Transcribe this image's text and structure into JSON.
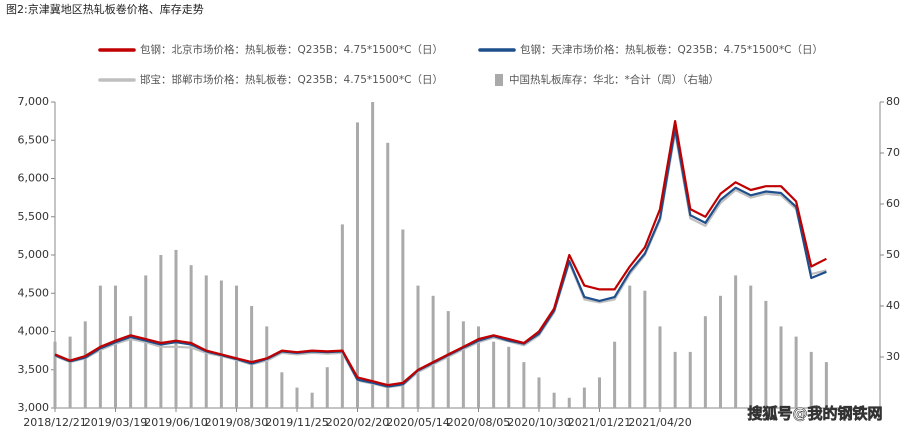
{
  "chart_data": {
    "type": "line-bar",
    "title": "图2:京津冀地区热轧板卷价格、库存走势",
    "watermark": "搜狐号@我的钢铁网",
    "categories": [
      "2018/12/21",
      null,
      null,
      null,
      "2019/03/19",
      null,
      null,
      null,
      "2019/06/10",
      null,
      null,
      null,
      "2019/08/30",
      null,
      null,
      null,
      "2019/11/25",
      null,
      null,
      null,
      "2020/02/20",
      null,
      null,
      null,
      "2020/05/14",
      null,
      null,
      null,
      "2020/08/05",
      null,
      null,
      null,
      "2020/10/30",
      null,
      null,
      null,
      "2021/01/21",
      null,
      null,
      null,
      "2021/04/20",
      null,
      null,
      null,
      null,
      null,
      null,
      null,
      null,
      null,
      null,
      null
    ],
    "ylim": [
      3000,
      7000
    ],
    "yticks": [
      {
        "value": 3000,
        "label": "3,000"
      },
      {
        "value": 3500,
        "label": "3,500"
      },
      {
        "value": 4000,
        "label": "4,000"
      },
      {
        "value": 4500,
        "label": "4,500"
      },
      {
        "value": 5000,
        "label": "5,000"
      },
      {
        "value": 5500,
        "label": "5,500"
      },
      {
        "value": 6000,
        "label": "6,000"
      },
      {
        "value": 6500,
        "label": "6,500"
      },
      {
        "value": 7000,
        "label": "7,000"
      }
    ],
    "y2lim": [
      20,
      80
    ],
    "y2ticks": [
      30,
      40,
      50,
      60,
      70,
      80
    ],
    "series": [
      {
        "name": "中国热轧板库存：华北：*合计（周）（右轴）",
        "color": "#aaaaaa",
        "axis": "y2",
        "kind": "bar",
        "values": [
          33,
          34,
          37,
          44,
          44,
          38,
          46,
          50,
          51,
          48,
          46,
          45,
          44,
          40,
          36,
          27,
          24,
          23,
          28,
          56,
          76,
          80,
          72,
          55,
          44,
          42,
          39,
          37,
          36,
          33,
          32,
          29,
          26,
          23,
          22,
          24,
          26,
          33,
          44,
          43,
          36,
          31,
          31,
          38,
          42,
          46,
          44,
          41,
          36,
          34,
          31,
          29
        ]
      },
      {
        "name": "邯宝：邯郸市场价格：热轧板卷：Q235B：4.75*1500*C（日）",
        "color": "#bfbfbf",
        "kind": "line",
        "values": [
          3680,
          3600,
          3650,
          3760,
          3840,
          3900,
          3860,
          3800,
          3800,
          3790,
          3720,
          3680,
          3630,
          3570,
          3620,
          3720,
          3700,
          3720,
          3710,
          3720,
          3360,
          3320,
          3270,
          3300,
          3470,
          3570,
          3670,
          3770,
          3860,
          3920,
          3870,
          3820,
          3950,
          4250,
          4900,
          4420,
          4380,
          4420,
          4750,
          5000,
          5450,
          6600,
          5480,
          5380,
          5680,
          5850,
          5750,
          5800,
          5780,
          5600,
          4750,
          4800
        ]
      },
      {
        "name": "包钢：天津市场价格：热轧板卷：Q235B：4.75*1500*C（日）",
        "color": "#1f4e8c",
        "kind": "line",
        "values": [
          3690,
          3610,
          3660,
          3780,
          3860,
          3930,
          3880,
          3830,
          3860,
          3830,
          3740,
          3690,
          3640,
          3580,
          3640,
          3740,
          3720,
          3740,
          3730,
          3740,
          3370,
          3330,
          3280,
          3310,
          3490,
          3590,
          3690,
          3790,
          3880,
          3940,
          3880,
          3840,
          3970,
          4270,
          4920,
          4450,
          4400,
          4450,
          4780,
          5020,
          5480,
          6650,
          5520,
          5420,
          5720,
          5880,
          5780,
          5830,
          5810,
          5630,
          4700,
          4780
        ]
      },
      {
        "name": "包钢：北京市场价格：热轧板卷：Q235B：4.75*1500*C（日）",
        "color": "#c00000",
        "kind": "line",
        "values": [
          3700,
          3620,
          3680,
          3800,
          3880,
          3950,
          3900,
          3850,
          3880,
          3850,
          3750,
          3700,
          3650,
          3600,
          3650,
          3750,
          3730,
          3750,
          3740,
          3750,
          3400,
          3350,
          3300,
          3330,
          3500,
          3600,
          3700,
          3800,
          3900,
          3950,
          3900,
          3850,
          4000,
          4300,
          5000,
          4600,
          4550,
          4550,
          4850,
          5100,
          5600,
          6750,
          5600,
          5500,
          5800,
          5950,
          5850,
          5900,
          5900,
          5700,
          4850,
          4950
        ]
      }
    ]
  }
}
